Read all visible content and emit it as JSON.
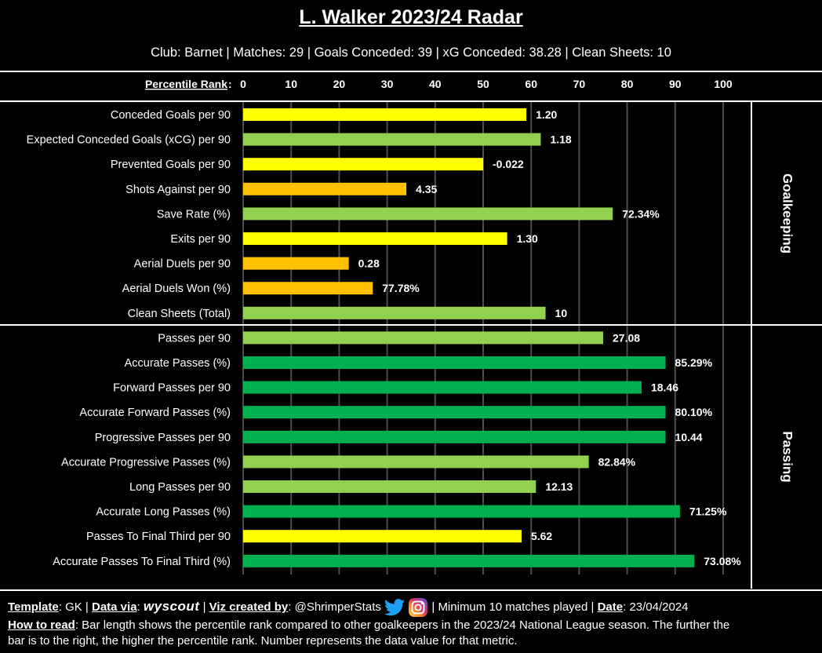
{
  "header": {
    "title": "L. Walker 2023/24 Radar",
    "subtitle": "Club: Barnet | Matches: 29 | Goals Conceded: 39 | xG Conceded: 38.28 | Clean Sheets: 10"
  },
  "colors": {
    "yellow": "#ffff00",
    "orange": "#ffc000",
    "light_green": "#92d050",
    "green": "#00b050",
    "background": "#000000",
    "text": "#ffffff"
  },
  "chart_data": {
    "type": "bar",
    "orientation": "horizontal",
    "xlabel": "Percentile Rank",
    "xlim": [
      0,
      100
    ],
    "xticks": [
      "0",
      "10",
      "20",
      "30",
      "40",
      "50",
      "60",
      "70",
      "80",
      "90",
      "100"
    ],
    "grid": "vertical",
    "sections": [
      {
        "name": "Goalkeeping",
        "bars": [
          {
            "label": "Conceded Goals per 90",
            "percentile": 59,
            "value_label": "1.20",
            "color": "#ffff00"
          },
          {
            "label": "Expected Conceded Goals (xCG) per 90",
            "percentile": 62,
            "value_label": "1.18",
            "color": "#92d050"
          },
          {
            "label": "Prevented Goals per 90",
            "percentile": 50,
            "value_label": "-0.022",
            "color": "#ffff00"
          },
          {
            "label": "Shots Against per 90",
            "percentile": 34,
            "value_label": "4.35",
            "color": "#ffc000"
          },
          {
            "label": "Save Rate (%)",
            "percentile": 77,
            "value_label": "72.34%",
            "color": "#92d050"
          },
          {
            "label": "Exits per 90",
            "percentile": 55,
            "value_label": "1.30",
            "color": "#ffff00"
          },
          {
            "label": "Aerial Duels per 90",
            "percentile": 22,
            "value_label": "0.28",
            "color": "#ffc000"
          },
          {
            "label": "Aerial Duels Won (%)",
            "percentile": 27,
            "value_label": "77.78%",
            "color": "#ffc000"
          },
          {
            "label": "Clean Sheets (Total)",
            "percentile": 63,
            "value_label": "10",
            "color": "#92d050"
          }
        ]
      },
      {
        "name": "Passing",
        "bars": [
          {
            "label": "Passes per 90",
            "percentile": 75,
            "value_label": "27.08",
            "color": "#92d050"
          },
          {
            "label": "Accurate Passes (%)",
            "percentile": 88,
            "value_label": "85.29%",
            "color": "#00b050"
          },
          {
            "label": "Forward Passes per 90",
            "percentile": 83,
            "value_label": "18.46",
            "color": "#00b050"
          },
          {
            "label": "Accurate Forward Passes (%)",
            "percentile": 88,
            "value_label": "80.10%",
            "color": "#00b050"
          },
          {
            "label": "Progressive Passes per 90",
            "percentile": 88,
            "value_label": "10.44",
            "color": "#00b050"
          },
          {
            "label": "Accurate Progressive Passes (%)",
            "percentile": 72,
            "value_label": "82.84%",
            "color": "#92d050"
          },
          {
            "label": "Long Passes per 90",
            "percentile": 61,
            "value_label": "12.13",
            "color": "#92d050"
          },
          {
            "label": "Accurate Long Passes (%)",
            "percentile": 91,
            "value_label": "71.25%",
            "color": "#00b050"
          },
          {
            "label": "Passes To Final Third per 90",
            "percentile": 58,
            "value_label": "5.62",
            "color": "#ffff00"
          },
          {
            "label": "Accurate Passes To Final Third (%)",
            "percentile": 94,
            "value_label": "73.08%",
            "color": "#00b050"
          }
        ]
      }
    ]
  },
  "footer": {
    "template_label": "Template",
    "template_value": ": GK | ",
    "data_label": "Data via",
    "data_colon": ": ",
    "data_source": "wyscout",
    "created_label": "Viz created by",
    "created_value": ": @ShrimperStats",
    "icons": [
      "twitter-icon",
      "instagram-icon"
    ],
    "minimum": "| Minimum 10 matches played | ",
    "date_label": "Date",
    "date_value": ": 23/04/2024",
    "howto_label": "How to read",
    "howto_line1": ": Bar length shows the percentile rank compared to other goalkeepers in the 2023/24 National League season. The further the",
    "howto_line2": "bar is to the right, the higher the percentile rank. Number represents the data value for that metric."
  }
}
